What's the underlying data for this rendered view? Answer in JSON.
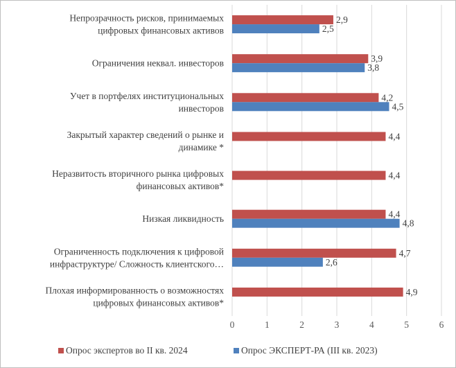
{
  "chart_data": {
    "type": "bar",
    "orientation": "horizontal",
    "categories": [
      [
        "Непрозрачность рисков, принимаемых",
        "цифровых финансовых активов"
      ],
      [
        "Ограничения неквал. инвесторов"
      ],
      [
        "Учет в портфелях институциональных",
        "инвесторов"
      ],
      [
        "Закрытый характер сведений о рынке и",
        "динамике *"
      ],
      [
        "Неразвитость вторичного рынка цифровых",
        "финансовых активов*"
      ],
      [
        "Низкая ликвидность"
      ],
      [
        "Ограниченность подключения к цифровой",
        "инфраструктуре/ Сложность клиентского…"
      ],
      [
        "Плохая информированность о возможностях",
        "цифровых финансовых активов*"
      ]
    ],
    "series": [
      {
        "name": "Опрос экспертов во II кв. 2024",
        "color": "#c0504d",
        "values": [
          2.9,
          3.9,
          4.2,
          4.4,
          4.4,
          4.4,
          4.7,
          4.9
        ],
        "labels": [
          "2,9",
          "3,9",
          "4,2",
          "4,4",
          "4,4",
          "4,4",
          "4,7",
          "4,9"
        ]
      },
      {
        "name": "Опрос ЭКСПЕРТ-РА (III кв. 2023)",
        "color": "#4f81bd",
        "values": [
          2.5,
          3.8,
          4.5,
          null,
          null,
          4.8,
          2.6,
          null
        ],
        "labels": [
          "2,5",
          "3,8",
          "4,5",
          null,
          null,
          "4,8",
          "2,6",
          null
        ]
      }
    ],
    "xlim": [
      0,
      6
    ],
    "xticks": [
      "0",
      "1",
      "2",
      "3",
      "4",
      "5",
      "6"
    ],
    "grid": "vertical",
    "legend": "bottom"
  }
}
